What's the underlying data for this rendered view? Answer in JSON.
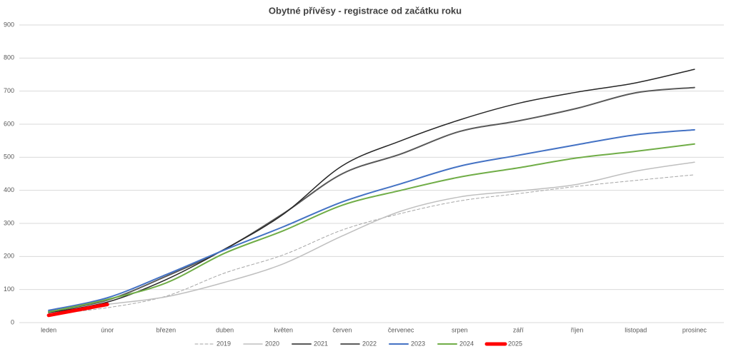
{
  "chart_data": {
    "type": "line",
    "title": "Obytné přívěsy - registrace od začátku roku",
    "categories": [
      "leden",
      "únor",
      "březen",
      "duben",
      "květen",
      "červen",
      "červenec",
      "srpen",
      "září",
      "říjen",
      "listopad",
      "prosinec"
    ],
    "series": [
      {
        "name": "2019",
        "color": "#a6a6a6",
        "dash": true,
        "width": 1,
        "values": [
          25,
          45,
          80,
          150,
          205,
          280,
          330,
          368,
          390,
          412,
          430,
          447
        ]
      },
      {
        "name": "2020",
        "color": "#bfbfbf",
        "width": 1.5,
        "values": [
          30,
          55,
          78,
          122,
          178,
          262,
          337,
          380,
          398,
          418,
          458,
          485
        ]
      },
      {
        "name": "2021",
        "color": "#595959",
        "width": 2,
        "values": [
          33,
          68,
          140,
          222,
          330,
          450,
          510,
          578,
          610,
          648,
          695,
          711
        ]
      },
      {
        "name": "2022",
        "color": "#262626",
        "width": 1.5,
        "values": [
          30,
          62,
          130,
          222,
          328,
          474,
          550,
          613,
          663,
          697,
          725,
          766
        ]
      },
      {
        "name": "2023",
        "color": "#4472c4",
        "width": 2,
        "values": [
          37,
          75,
          145,
          220,
          290,
          365,
          420,
          473,
          506,
          538,
          568,
          583
        ]
      },
      {
        "name": "2024",
        "color": "#70ad47",
        "width": 2,
        "values": [
          32,
          70,
          120,
          210,
          278,
          355,
          400,
          440,
          468,
          498,
          518,
          540
        ]
      },
      {
        "name": "2025",
        "color": "#ff0000",
        "width": 5,
        "values": [
          22,
          55,
          null,
          null,
          null,
          null,
          null,
          null,
          null,
          null,
          null,
          null
        ]
      }
    ],
    "ylim": [
      0,
      900
    ],
    "yticks": [
      0,
      100,
      200,
      300,
      400,
      500,
      600,
      700,
      800,
      900
    ],
    "grid": true,
    "legend": "bottom"
  }
}
